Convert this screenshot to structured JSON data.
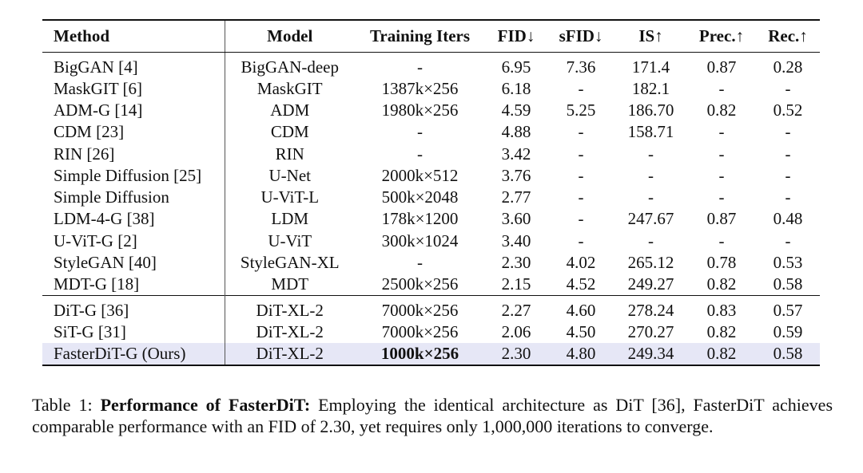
{
  "table": {
    "headers": [
      "Method",
      "Model",
      "Training Iters",
      "FID↓",
      "sFID↓",
      "IS↑",
      "Prec.↑",
      "Rec.↑"
    ],
    "group1": [
      {
        "method": "BigGAN [4]",
        "model": "BigGAN-deep",
        "iters": "-",
        "fid": "6.95",
        "sfid": "7.36",
        "is": "171.4",
        "prec": "0.87",
        "rec": "0.28"
      },
      {
        "method": "MaskGIT [6]",
        "model": "MaskGIT",
        "iters": "1387k×256",
        "fid": "6.18",
        "sfid": "-",
        "is": "182.1",
        "prec": "-",
        "rec": "-"
      },
      {
        "method": "ADM-G [14]",
        "model": "ADM",
        "iters": "1980k×256",
        "fid": "4.59",
        "sfid": "5.25",
        "is": "186.70",
        "prec": "0.82",
        "rec": "0.52"
      },
      {
        "method": "CDM [23]",
        "model": "CDM",
        "iters": "-",
        "fid": "4.88",
        "sfid": "-",
        "is": "158.71",
        "prec": "-",
        "rec": "-"
      },
      {
        "method": "RIN [26]",
        "model": "RIN",
        "iters": "-",
        "fid": "3.42",
        "sfid": "-",
        "is": "-",
        "prec": "-",
        "rec": "-"
      },
      {
        "method": "Simple Diffusion [25]",
        "model": "U-Net",
        "iters": "2000k×512",
        "fid": "3.76",
        "sfid": "-",
        "is": "-",
        "prec": "-",
        "rec": "-"
      },
      {
        "method": "Simple Diffusion",
        "model": "U-ViT-L",
        "iters": "500k×2048",
        "fid": "2.77",
        "sfid": "-",
        "is": "-",
        "prec": "-",
        "rec": "-"
      },
      {
        "method": "LDM-4-G [38]",
        "model": "LDM",
        "iters": "178k×1200",
        "fid": "3.60",
        "sfid": "-",
        "is": "247.67",
        "prec": "0.87",
        "rec": "0.48"
      },
      {
        "method": "U-ViT-G [2]",
        "model": "U-ViT",
        "iters": "300k×1024",
        "fid": "3.40",
        "sfid": "-",
        "is": "-",
        "prec": "-",
        "rec": "-"
      },
      {
        "method": "StyleGAN [40]",
        "model": "StyleGAN-XL",
        "iters": "-",
        "fid": "2.30",
        "sfid": "4.02",
        "is": "265.12",
        "prec": "0.78",
        "rec": "0.53"
      },
      {
        "method": "MDT-G [18]",
        "model": "MDT",
        "iters": "2500k×256",
        "fid": "2.15",
        "sfid": "4.52",
        "is": "249.27",
        "prec": "0.82",
        "rec": "0.58"
      }
    ],
    "group2": [
      {
        "method": "DiT-G [36]",
        "model": "DiT-XL-2",
        "iters": "7000k×256",
        "fid": "2.27",
        "sfid": "4.60",
        "is": "278.24",
        "prec": "0.83",
        "rec": "0.57"
      },
      {
        "method": "SiT-G [31]",
        "model": "DiT-XL-2",
        "iters": "7000k×256",
        "fid": "2.06",
        "sfid": "4.50",
        "is": "270.27",
        "prec": "0.82",
        "rec": "0.59"
      },
      {
        "method": "FasterDiT-G (Ours)",
        "model": "DiT-XL-2",
        "iters": "1000k×256",
        "fid": "2.30",
        "sfid": "4.80",
        "is": "249.34",
        "prec": "0.82",
        "rec": "0.58",
        "highlight": true
      }
    ],
    "highlight_color": "#e6e7f6"
  },
  "caption": {
    "label": "Table 1: ",
    "bold_title": "Performance of FasterDiT:",
    "text": " Employing the identical architecture as DiT [36], FasterDiT achieves comparable performance with an FID of 2.30, yet requires only 1,000,000 iterations to converge."
  }
}
